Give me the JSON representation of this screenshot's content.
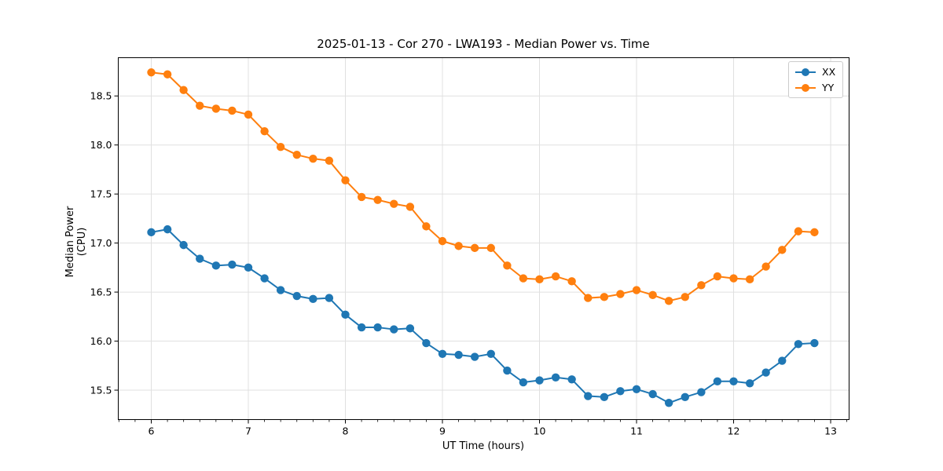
{
  "chart_data": {
    "type": "line",
    "title": "2025-01-13 - Cor 270 - LWA193 - Median Power vs. Time",
    "xlabel": "UT Time (hours)",
    "ylabel": "Median Power (CPU)",
    "xlim": [
      5.66,
      13.19
    ],
    "ylim": [
      15.2,
      18.89
    ],
    "x_ticks": [
      6,
      7,
      8,
      9,
      10,
      11,
      12,
      13
    ],
    "y_ticks": [
      15.5,
      16.0,
      16.5,
      17.0,
      17.5,
      18.0,
      18.5
    ],
    "minor_ticks_per_hour": 6,
    "grid": true,
    "legend_position": "upper right",
    "x": [
      6.0,
      6.167,
      6.333,
      6.5,
      6.667,
      6.833,
      7.0,
      7.167,
      7.333,
      7.5,
      7.667,
      7.833,
      8.0,
      8.167,
      8.333,
      8.5,
      8.667,
      8.833,
      9.0,
      9.167,
      9.333,
      9.5,
      9.667,
      9.833,
      10.0,
      10.167,
      10.333,
      10.5,
      10.667,
      10.833,
      11.0,
      11.167,
      11.333,
      11.5,
      11.667,
      11.833,
      12.0,
      12.167,
      12.333,
      12.5,
      12.667,
      12.833
    ],
    "series": [
      {
        "name": "XX",
        "color": "#1f77b4",
        "values": [
          17.11,
          17.14,
          16.98,
          16.84,
          16.77,
          16.78,
          16.75,
          16.64,
          16.52,
          16.46,
          16.43,
          16.44,
          16.27,
          16.14,
          16.14,
          16.12,
          16.13,
          15.98,
          15.87,
          15.86,
          15.84,
          15.87,
          15.7,
          15.58,
          15.6,
          15.63,
          15.61,
          15.44,
          15.43,
          15.49,
          15.51,
          15.46,
          15.37,
          15.43,
          15.48,
          15.59,
          15.59,
          15.57,
          15.68,
          15.8,
          15.97,
          15.98
        ]
      },
      {
        "name": "YY",
        "color": "#ff7f0e",
        "values": [
          18.74,
          18.72,
          18.56,
          18.4,
          18.37,
          18.35,
          18.31,
          18.14,
          17.98,
          17.9,
          17.86,
          17.84,
          17.64,
          17.47,
          17.44,
          17.4,
          17.37,
          17.17,
          17.02,
          16.97,
          16.95,
          16.95,
          16.77,
          16.64,
          16.63,
          16.66,
          16.61,
          16.44,
          16.45,
          16.48,
          16.52,
          16.47,
          16.41,
          16.45,
          16.57,
          16.66,
          16.64,
          16.63,
          16.76,
          16.93,
          17.12,
          17.11
        ]
      }
    ],
    "style": {
      "grid_color": "#e0e0e0",
      "spine_color": "#000000",
      "tick_label_color": "#000000",
      "background": "#ffffff",
      "marker": "circle",
      "marker_radius": 5.2,
      "line_width": 2
    }
  }
}
